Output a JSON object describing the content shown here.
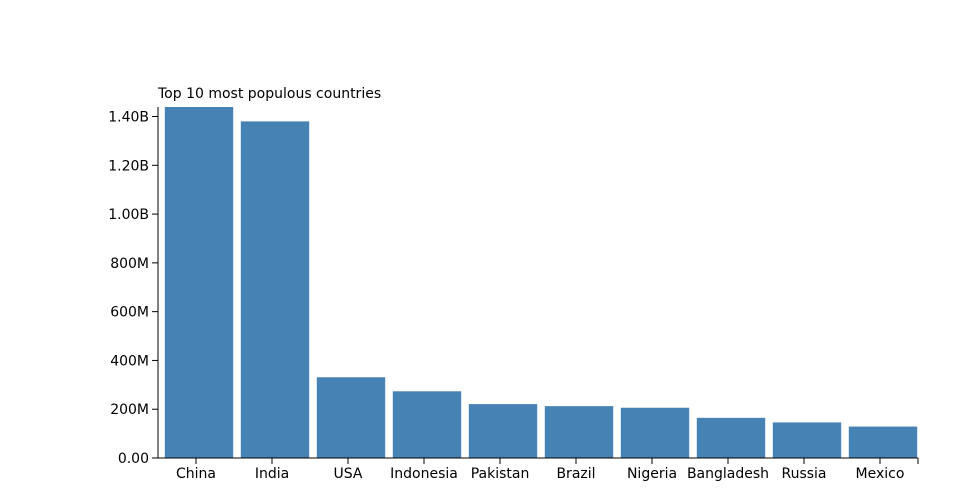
{
  "chart_data": {
    "type": "bar",
    "title": "Top 10 most populous countries",
    "xlabel": "",
    "ylabel": "",
    "categories": [
      "China",
      "India",
      "USA",
      "Indonesia",
      "Pakistan",
      "Brazil",
      "Nigeria",
      "Bangladesh",
      "Russia",
      "Mexico"
    ],
    "values": [
      1439000000,
      1380000000,
      331000000,
      273500000,
      220900000,
      212600000,
      206100000,
      164700000,
      145900000,
      128900000
    ],
    "ylim": [
      0,
      1439000000
    ],
    "y_ticks": [
      0,
      200000000,
      400000000,
      600000000,
      800000000,
      1000000000,
      1200000000,
      1400000000
    ],
    "y_tick_labels": [
      "0.00",
      "200M",
      "400M",
      "600M",
      "800M",
      "1.00B",
      "1.20B",
      "1.40B"
    ],
    "grid": false,
    "bar_color": "#4682b4"
  }
}
